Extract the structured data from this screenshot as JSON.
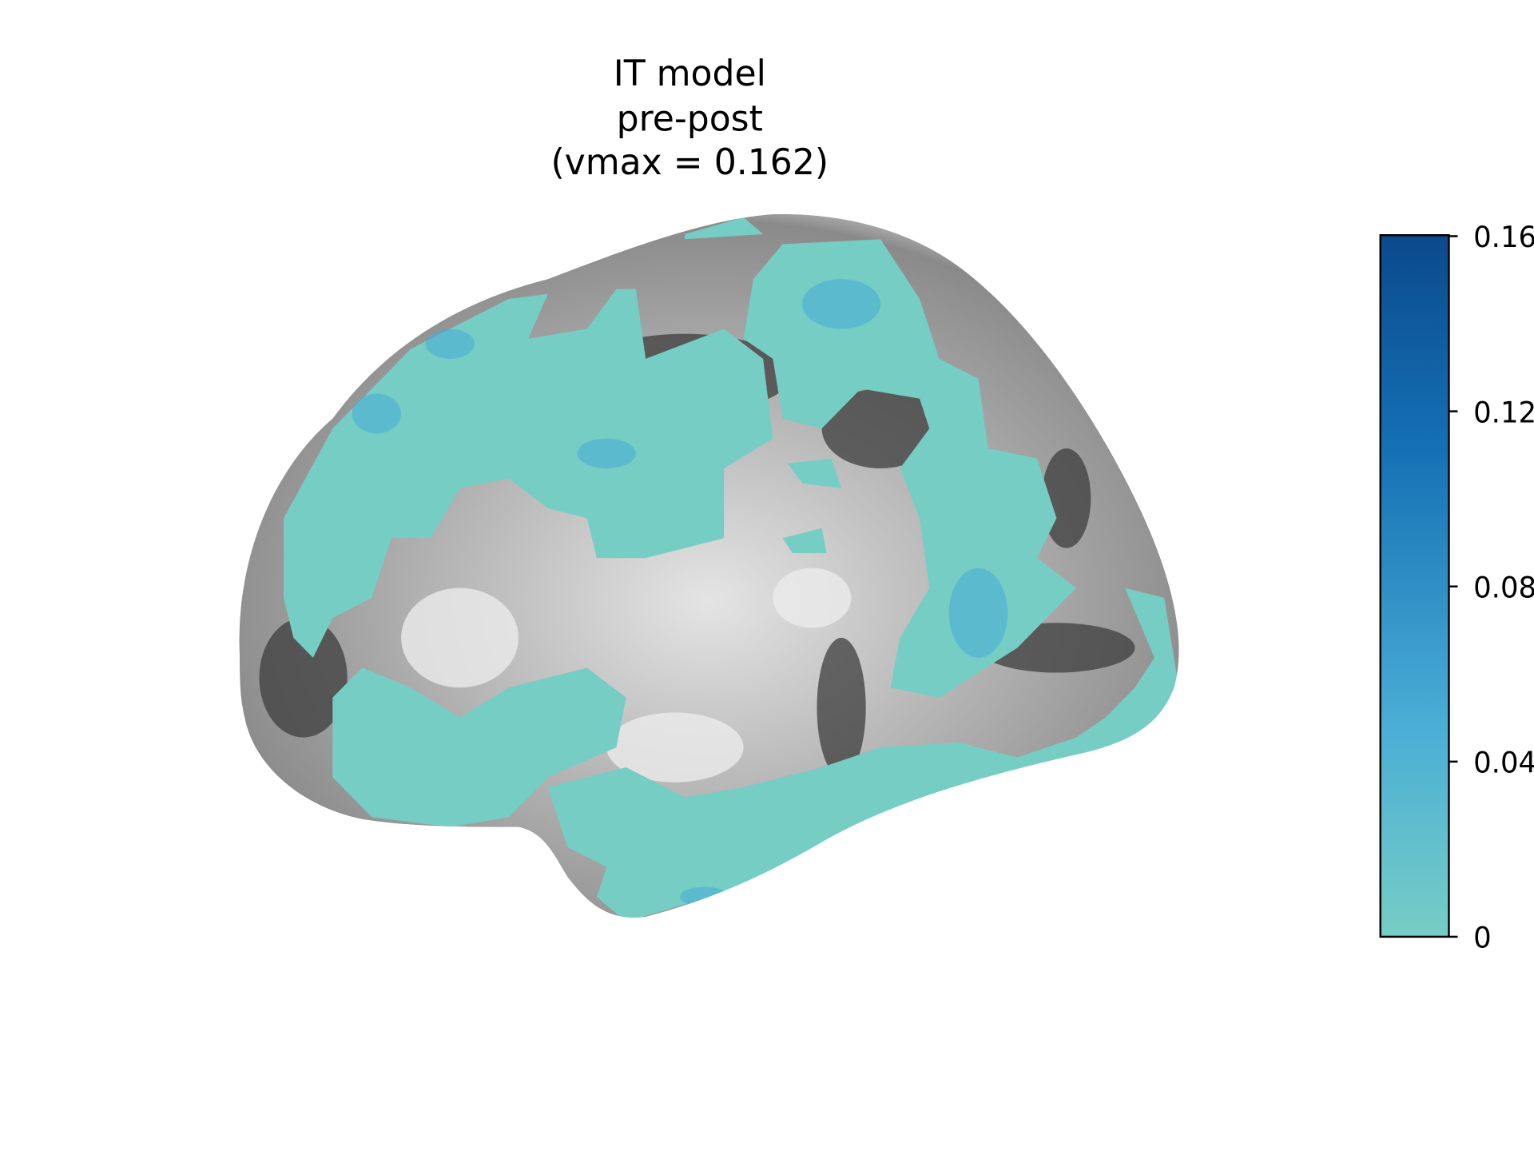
{
  "chart_data": {
    "type": "surface",
    "title": [
      "IT model",
      "pre-post",
      "(vmax = 0.162)"
    ],
    "colorbar": {
      "clim": [
        0,
        0.16
      ],
      "ticks": [
        0,
        0.04,
        0.08,
        0.12,
        0.16
      ],
      "colors": [
        "#76cdc4",
        "#0b4a8d"
      ]
    }
  }
}
